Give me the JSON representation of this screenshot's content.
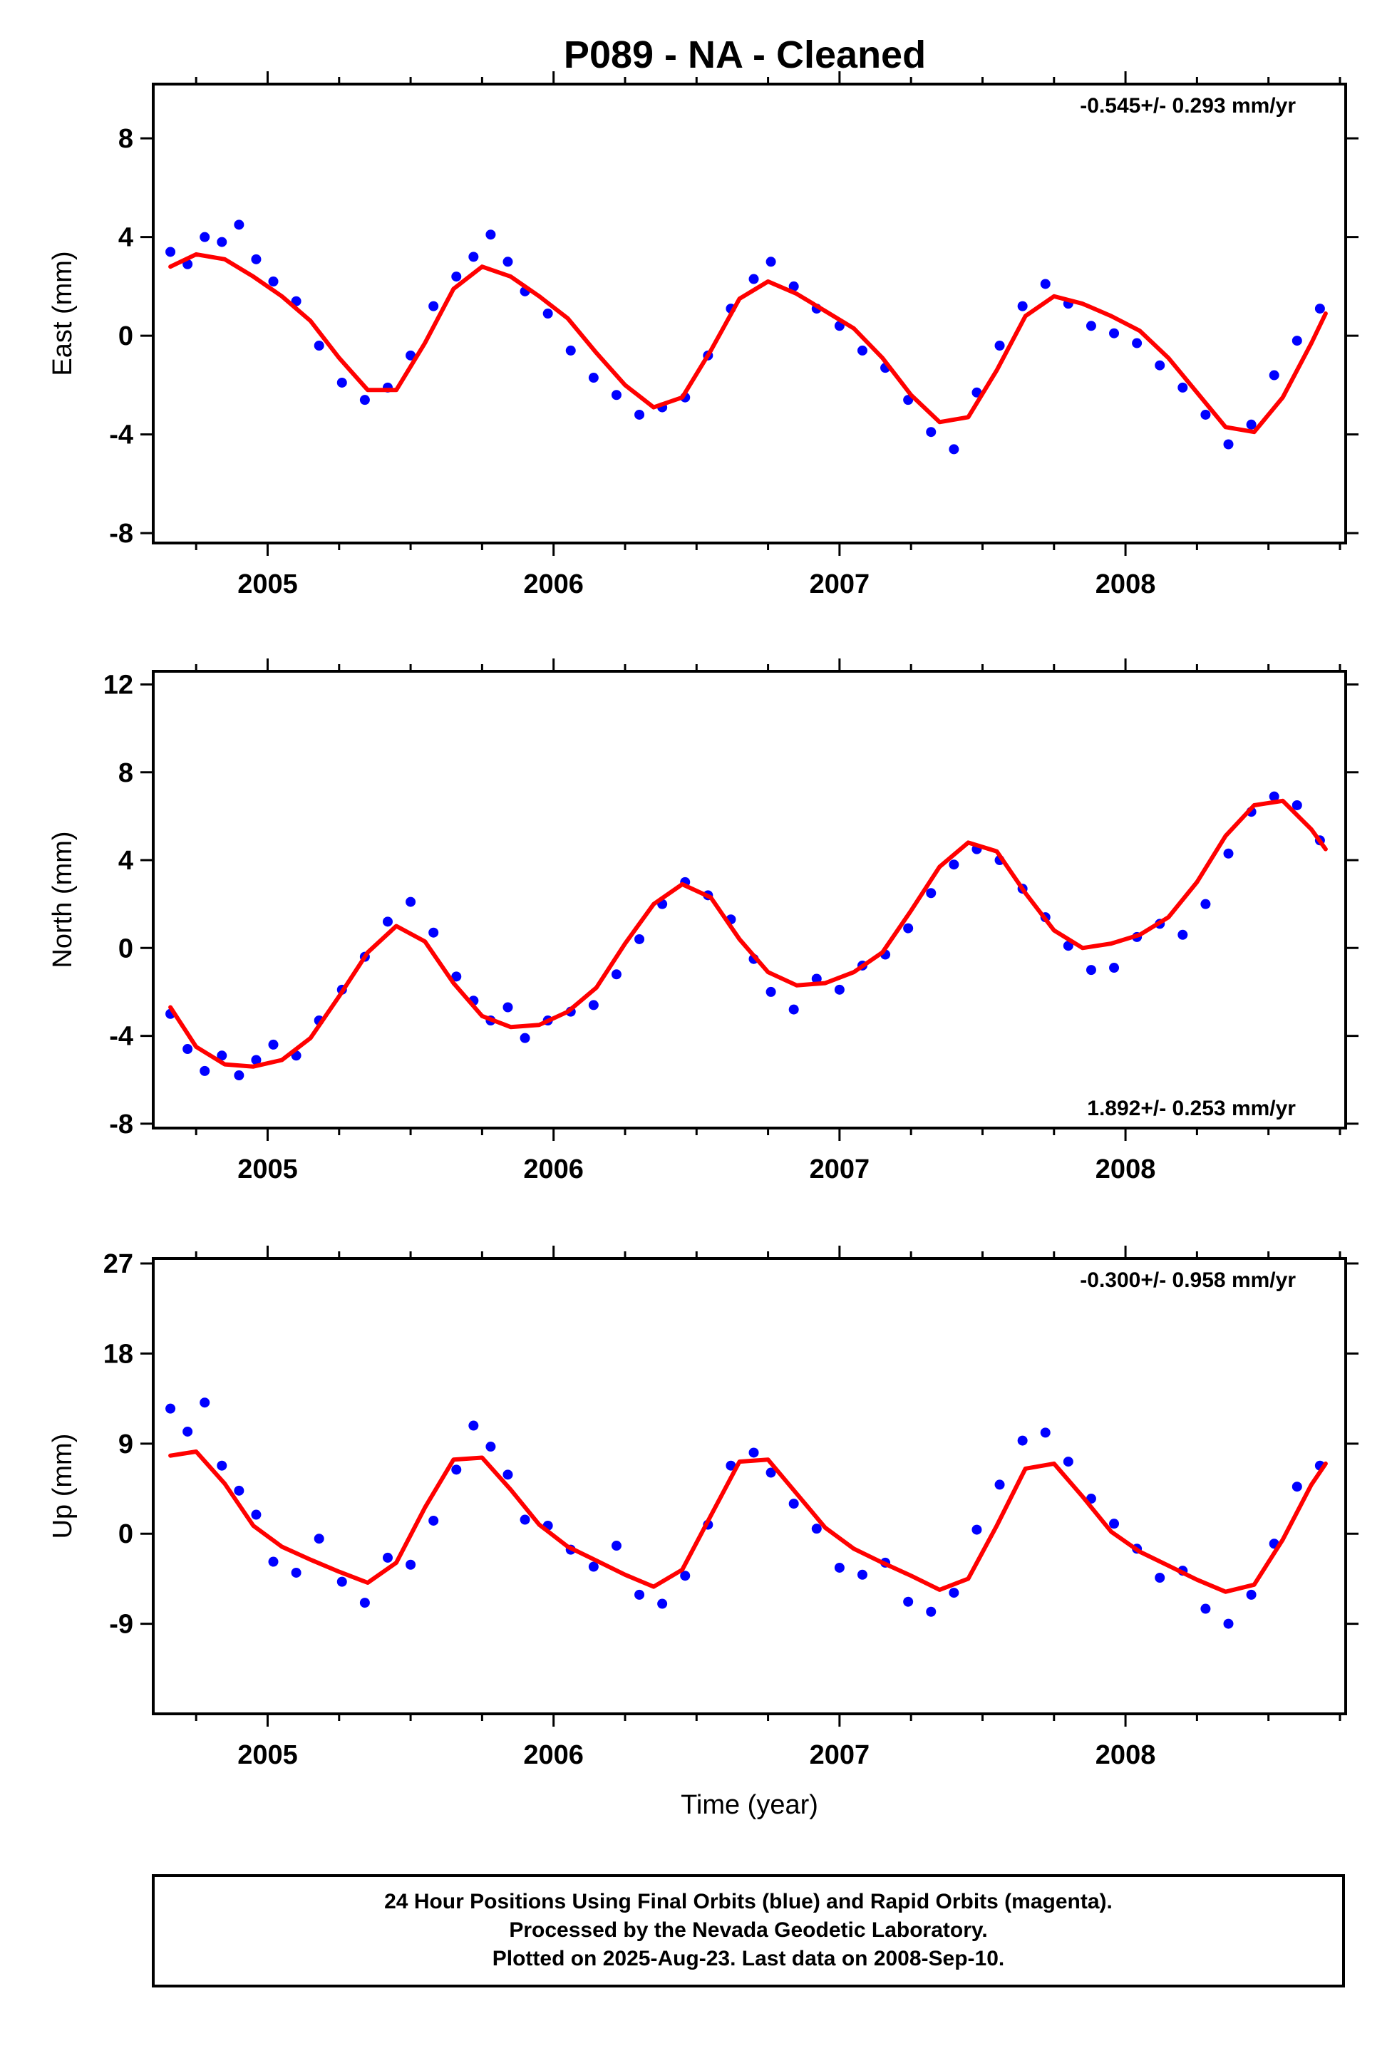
{
  "title": "P089  - NA - Cleaned",
  "colors": {
    "points": "#0000ff",
    "fit": "#ff0000",
    "frame": "#000000"
  },
  "footer": {
    "lines": [
      "24 Hour Positions Using Final Orbits (blue) and Rapid Orbits (magenta).",
      "Processed by the Nevada Geodetic Laboratory.",
      "Plotted on 2025-Aug-23. Last data on 2008-Sep-10."
    ]
  },
  "chart_data": [
    {
      "type": "scatter",
      "ylabel": "East (mm)",
      "xlabel": "",
      "rate_label": "-0.545+/- 0.293 mm/yr",
      "rate_position": "top-right",
      "xlim": [
        2004.6,
        2008.77
      ],
      "ylim": [
        -8.4,
        10.2
      ],
      "x_ticks": [
        2005,
        2006,
        2007,
        2008
      ],
      "x_tick_labels": [
        "2005",
        "2006",
        "2007",
        "2008"
      ],
      "y_ticks": [
        -8,
        -4,
        0,
        4,
        8
      ],
      "y_tick_labels": [
        "-8",
        "-4",
        "0",
        "4",
        "8"
      ],
      "grid": false,
      "series": [
        {
          "kind": "points",
          "x": [
            2004.66,
            2004.72,
            2004.78,
            2004.84,
            2004.9,
            2004.96,
            2005.02,
            2005.1,
            2005.18,
            2005.26,
            2005.34,
            2005.42,
            2005.5,
            2005.58,
            2005.66,
            2005.72,
            2005.78,
            2005.84,
            2005.9,
            2005.98,
            2006.06,
            2006.14,
            2006.22,
            2006.3,
            2006.38,
            2006.46,
            2006.54,
            2006.62,
            2006.7,
            2006.76,
            2006.84,
            2006.92,
            2007.0,
            2007.08,
            2007.16,
            2007.24,
            2007.32,
            2007.4,
            2007.48,
            2007.56,
            2007.64,
            2007.72,
            2007.8,
            2007.88,
            2007.96,
            2008.04,
            2008.12,
            2008.2,
            2008.28,
            2008.36,
            2008.44,
            2008.52,
            2008.6,
            2008.68
          ],
          "y": [
            3.4,
            2.9,
            4.0,
            3.8,
            4.5,
            3.1,
            2.2,
            1.4,
            -0.4,
            -1.9,
            -2.6,
            -2.1,
            -0.8,
            1.2,
            2.4,
            3.2,
            4.1,
            3.0,
            1.8,
            0.9,
            -0.6,
            -1.7,
            -2.4,
            -3.2,
            -2.9,
            -2.5,
            -0.8,
            1.1,
            2.3,
            3.0,
            2.0,
            1.1,
            0.4,
            -0.6,
            -1.3,
            -2.6,
            -3.9,
            -4.6,
            -2.3,
            -0.4,
            1.2,
            2.1,
            1.3,
            0.4,
            0.1,
            -0.3,
            -1.2,
            -2.1,
            -3.2,
            -4.4,
            -3.6,
            -1.6,
            -0.2,
            1.1
          ]
        },
        {
          "kind": "fit",
          "x": [
            2004.66,
            2004.75,
            2004.85,
            2004.95,
            2005.05,
            2005.15,
            2005.25,
            2005.35,
            2005.45,
            2005.55,
            2005.65,
            2005.75,
            2005.85,
            2005.95,
            2006.05,
            2006.15,
            2006.25,
            2006.35,
            2006.45,
            2006.55,
            2006.65,
            2006.75,
            2006.85,
            2006.95,
            2007.05,
            2007.15,
            2007.25,
            2007.35,
            2007.45,
            2007.55,
            2007.65,
            2007.75,
            2007.85,
            2007.95,
            2008.05,
            2008.15,
            2008.25,
            2008.35,
            2008.45,
            2008.55,
            2008.65,
            2008.7
          ],
          "y": [
            2.8,
            3.3,
            3.1,
            2.4,
            1.6,
            0.6,
            -0.9,
            -2.2,
            -2.2,
            -0.3,
            1.9,
            2.8,
            2.4,
            1.6,
            0.7,
            -0.7,
            -2.0,
            -2.9,
            -2.5,
            -0.6,
            1.5,
            2.2,
            1.7,
            1.0,
            0.3,
            -0.9,
            -2.4,
            -3.5,
            -3.3,
            -1.4,
            0.8,
            1.6,
            1.3,
            0.8,
            0.2,
            -0.9,
            -2.3,
            -3.7,
            -3.9,
            -2.5,
            -0.3,
            0.9
          ]
        }
      ]
    },
    {
      "type": "scatter",
      "ylabel": "North (mm)",
      "xlabel": "",
      "rate_label": "1.892+/- 0.253 mm/yr",
      "rate_position": "bottom-right",
      "xlim": [
        2004.6,
        2008.77
      ],
      "ylim": [
        -8.2,
        12.6
      ],
      "x_ticks": [
        2005,
        2006,
        2007,
        2008
      ],
      "x_tick_labels": [
        "2005",
        "2006",
        "2007",
        "2008"
      ],
      "y_ticks": [
        -8,
        -4,
        0,
        4,
        8,
        12
      ],
      "y_tick_labels": [
        "-8",
        "-4",
        "0",
        "4",
        "8",
        "12"
      ],
      "grid": false,
      "series": [
        {
          "kind": "points",
          "x": [
            2004.66,
            2004.72,
            2004.78,
            2004.84,
            2004.9,
            2004.96,
            2005.02,
            2005.1,
            2005.18,
            2005.26,
            2005.34,
            2005.42,
            2005.5,
            2005.58,
            2005.66,
            2005.72,
            2005.78,
            2005.84,
            2005.9,
            2005.98,
            2006.06,
            2006.14,
            2006.22,
            2006.3,
            2006.38,
            2006.46,
            2006.54,
            2006.62,
            2006.7,
            2006.76,
            2006.84,
            2006.92,
            2007.0,
            2007.08,
            2007.16,
            2007.24,
            2007.32,
            2007.4,
            2007.48,
            2007.56,
            2007.64,
            2007.72,
            2007.8,
            2007.88,
            2007.96,
            2008.04,
            2008.12,
            2008.2,
            2008.28,
            2008.36,
            2008.44,
            2008.52,
            2008.6,
            2008.68
          ],
          "y": [
            -3.0,
            -4.6,
            -5.6,
            -4.9,
            -5.8,
            -5.1,
            -4.4,
            -4.9,
            -3.3,
            -1.9,
            -0.4,
            1.2,
            2.1,
            0.7,
            -1.3,
            -2.4,
            -3.3,
            -2.7,
            -4.1,
            -3.3,
            -2.9,
            -2.6,
            -1.2,
            0.4,
            2.0,
            3.0,
            2.4,
            1.3,
            -0.5,
            -2.0,
            -2.8,
            -1.4,
            -1.9,
            -0.8,
            -0.3,
            0.9,
            2.5,
            3.8,
            4.5,
            4.0,
            2.7,
            1.4,
            0.1,
            -1.0,
            -0.9,
            0.5,
            1.1,
            0.6,
            2.0,
            4.3,
            6.2,
            6.9,
            6.5,
            4.9
          ]
        },
        {
          "kind": "fit",
          "x": [
            2004.66,
            2004.75,
            2004.85,
            2004.95,
            2005.05,
            2005.15,
            2005.25,
            2005.35,
            2005.45,
            2005.55,
            2005.65,
            2005.75,
            2005.85,
            2005.95,
            2006.05,
            2006.15,
            2006.25,
            2006.35,
            2006.45,
            2006.55,
            2006.65,
            2006.75,
            2006.85,
            2006.95,
            2007.05,
            2007.15,
            2007.25,
            2007.35,
            2007.45,
            2007.55,
            2007.65,
            2007.75,
            2007.85,
            2007.95,
            2008.05,
            2008.15,
            2008.25,
            2008.35,
            2008.45,
            2008.55,
            2008.65,
            2008.7
          ],
          "y": [
            -2.7,
            -4.5,
            -5.3,
            -5.4,
            -5.1,
            -4.1,
            -2.2,
            -0.2,
            1.0,
            0.3,
            -1.6,
            -3.1,
            -3.6,
            -3.5,
            -2.9,
            -1.8,
            0.2,
            2.0,
            2.9,
            2.3,
            0.4,
            -1.1,
            -1.7,
            -1.6,
            -1.1,
            -0.2,
            1.7,
            3.7,
            4.8,
            4.4,
            2.5,
            0.8,
            0.0,
            0.2,
            0.6,
            1.4,
            3.0,
            5.1,
            6.5,
            6.7,
            5.4,
            4.5
          ]
        }
      ]
    },
    {
      "type": "scatter",
      "ylabel": "Up (mm)",
      "xlabel": "Time (year)",
      "rate_label": "-0.300+/- 0.958 mm/yr",
      "rate_position": "top-right",
      "xlim": [
        2004.6,
        2008.77
      ],
      "ylim": [
        -18,
        27.5
      ],
      "x_ticks": [
        2005,
        2006,
        2007,
        2008
      ],
      "x_tick_labels": [
        "2005",
        "2006",
        "2007",
        "2008"
      ],
      "y_ticks": [
        -9,
        0,
        9,
        18,
        27
      ],
      "y_tick_labels": [
        "-9",
        "0",
        "9",
        "18",
        "27"
      ],
      "grid": false,
      "series": [
        {
          "kind": "points",
          "x": [
            2004.66,
            2004.72,
            2004.78,
            2004.84,
            2004.9,
            2004.96,
            2005.02,
            2005.1,
            2005.18,
            2005.26,
            2005.34,
            2005.42,
            2005.5,
            2005.58,
            2005.66,
            2005.72,
            2005.78,
            2005.84,
            2005.9,
            2005.98,
            2006.06,
            2006.14,
            2006.22,
            2006.3,
            2006.38,
            2006.46,
            2006.54,
            2006.62,
            2006.7,
            2006.76,
            2006.84,
            2006.92,
            2007.0,
            2007.08,
            2007.16,
            2007.24,
            2007.32,
            2007.4,
            2007.48,
            2007.56,
            2007.64,
            2007.72,
            2007.8,
            2007.88,
            2007.96,
            2008.04,
            2008.12,
            2008.2,
            2008.28,
            2008.36,
            2008.44,
            2008.52,
            2008.6,
            2008.68
          ],
          "y": [
            12.5,
            10.2,
            13.1,
            6.8,
            4.3,
            1.9,
            -2.8,
            -3.9,
            -0.5,
            -4.8,
            -6.9,
            -2.4,
            -3.1,
            1.3,
            6.4,
            10.8,
            8.7,
            5.9,
            1.4,
            0.8,
            -1.6,
            -3.3,
            -1.2,
            -6.1,
            -7.0,
            -4.2,
            0.9,
            6.8,
            8.1,
            6.1,
            3.0,
            0.5,
            -3.4,
            -4.1,
            -2.9,
            -6.8,
            -7.8,
            -5.9,
            0.4,
            4.9,
            9.3,
            10.1,
            7.2,
            3.5,
            1.0,
            -1.5,
            -4.4,
            -3.7,
            -7.5,
            -9.0,
            -6.1,
            -1.0,
            4.7,
            6.8
          ]
        },
        {
          "kind": "fit",
          "x": [
            2004.66,
            2004.75,
            2004.85,
            2004.95,
            2005.05,
            2005.15,
            2005.25,
            2005.35,
            2005.45,
            2005.55,
            2005.65,
            2005.75,
            2005.85,
            2005.95,
            2006.05,
            2006.15,
            2006.25,
            2006.35,
            2006.45,
            2006.55,
            2006.65,
            2006.75,
            2006.85,
            2006.95,
            2007.05,
            2007.15,
            2007.25,
            2007.35,
            2007.45,
            2007.55,
            2007.65,
            2007.75,
            2007.85,
            2007.95,
            2008.05,
            2008.15,
            2008.25,
            2008.35,
            2008.45,
            2008.55,
            2008.65,
            2008.7
          ],
          "y": [
            7.8,
            8.2,
            5.0,
            0.8,
            -1.3,
            -2.6,
            -3.8,
            -4.9,
            -2.9,
            2.6,
            7.4,
            7.6,
            4.4,
            0.9,
            -1.3,
            -2.7,
            -4.1,
            -5.3,
            -3.6,
            1.8,
            7.2,
            7.4,
            4.0,
            0.6,
            -1.5,
            -2.9,
            -4.2,
            -5.6,
            -4.5,
            0.8,
            6.5,
            7.0,
            3.7,
            0.2,
            -1.8,
            -3.2,
            -4.6,
            -5.8,
            -5.1,
            -0.6,
            4.9,
            7.0
          ]
        }
      ]
    }
  ]
}
